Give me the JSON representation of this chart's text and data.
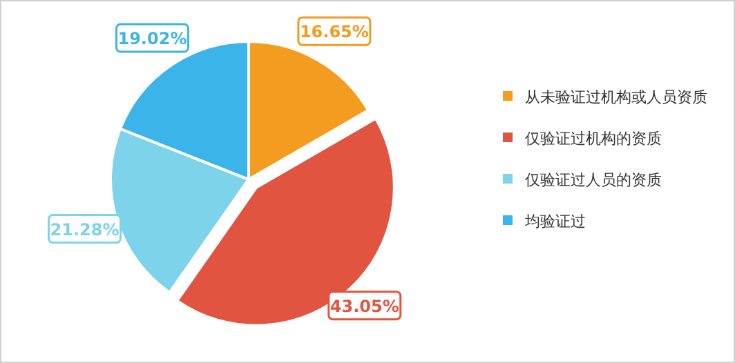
{
  "chart_data": {
    "type": "pie",
    "categories": [
      "从未验证过机构或人员资质",
      "仅验证过机构的资质",
      "仅验证过人员的资质",
      "均验证过"
    ],
    "values": [
      16.65,
      43.05,
      21.28,
      19.02
    ],
    "colors": [
      "#f49c1f",
      "#e05440",
      "#7dd3ea",
      "#3bb5e9"
    ],
    "value_labels": [
      "16.65%",
      "43.05%",
      "21.28%",
      "19.02%"
    ],
    "legend": "right"
  }
}
